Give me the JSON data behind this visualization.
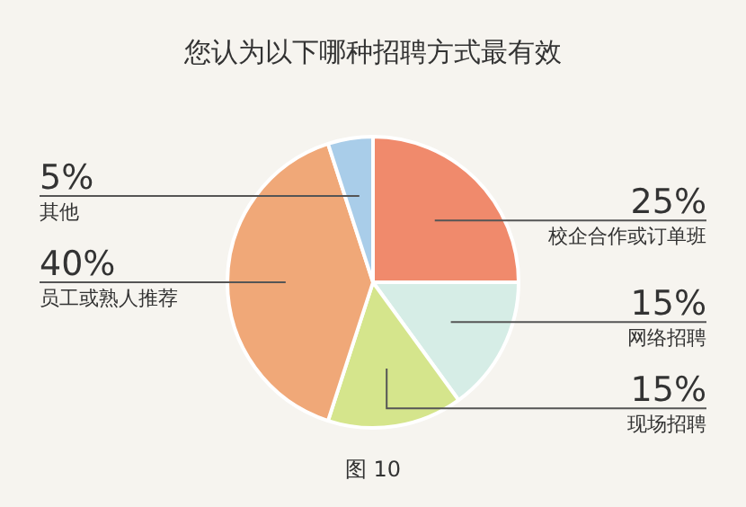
{
  "chart_data": {
    "type": "pie",
    "title": "您认为以下哪种招聘方式最有效",
    "categories": [
      "校企合作或订单班",
      "网络招聘",
      "现场招聘",
      "员工或熟人推荐",
      "其他"
    ],
    "values": [
      25,
      15,
      15,
      40,
      5
    ],
    "value_labels": [
      "25%",
      "15%",
      "15%",
      "40%",
      "5%"
    ],
    "colors": [
      "#f08a6c",
      "#d6ede6",
      "#d5e58c",
      "#f0a878",
      "#a9cde9"
    ],
    "annotations": [
      "图 10"
    ],
    "legend": false
  }
}
